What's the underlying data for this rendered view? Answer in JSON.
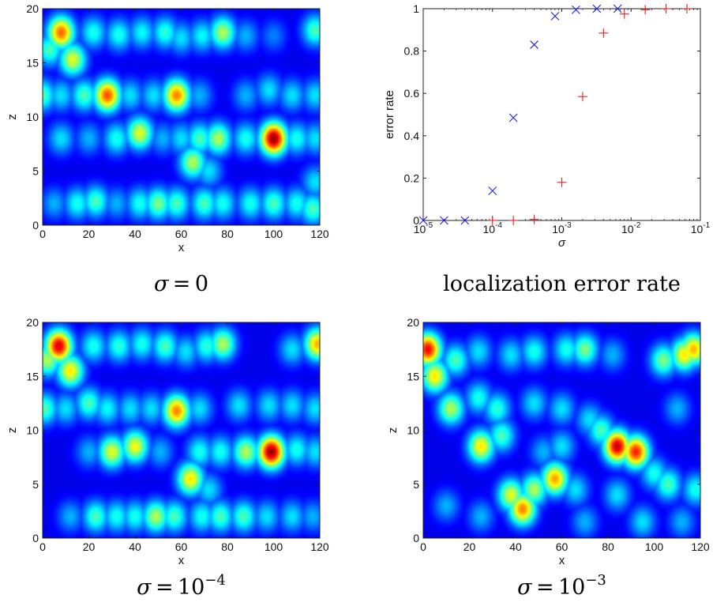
{
  "chart_data": [
    {
      "type": "heatmap",
      "panel": "top-left",
      "caption": {
        "symbol": "σ",
        "op": " = ",
        "base": "0",
        "exp": ""
      },
      "xlabel": "x",
      "ylabel": "z",
      "xlim": [
        0,
        120
      ],
      "ylim": [
        0,
        20
      ],
      "xticks": [
        "0",
        "20",
        "40",
        "60",
        "80",
        "100",
        "120"
      ],
      "yticks": [
        "0",
        "5",
        "10",
        "15",
        "20"
      ],
      "colormap": "jet",
      "blobs": [
        {
          "x": 8,
          "z": 17.8,
          "v": 0.78
        },
        {
          "x": 13,
          "z": 15.3,
          "v": 0.6
        },
        {
          "x": 3,
          "z": 16.2,
          "v": 0.45
        },
        {
          "x": 22,
          "z": 17.8,
          "v": 0.4
        },
        {
          "x": 33,
          "z": 17.6,
          "v": 0.4
        },
        {
          "x": 43,
          "z": 17.8,
          "v": 0.38
        },
        {
          "x": 53,
          "z": 17.8,
          "v": 0.42
        },
        {
          "x": 60,
          "z": 17.3,
          "v": 0.35
        },
        {
          "x": 69,
          "z": 17.5,
          "v": 0.38
        },
        {
          "x": 78,
          "z": 17.8,
          "v": 0.55
        },
        {
          "x": 88,
          "z": 17.5,
          "v": 0.3
        },
        {
          "x": 100,
          "z": 17.5,
          "v": 0.25
        },
        {
          "x": 118,
          "z": 18,
          "v": 0.45
        },
        {
          "x": 0,
          "z": 12,
          "v": 0.45
        },
        {
          "x": 8,
          "z": 12,
          "v": 0.35
        },
        {
          "x": 18,
          "z": 12,
          "v": 0.45
        },
        {
          "x": 28,
          "z": 12,
          "v": 0.8
        },
        {
          "x": 38,
          "z": 12,
          "v": 0.35
        },
        {
          "x": 48,
          "z": 12,
          "v": 0.35
        },
        {
          "x": 58,
          "z": 12,
          "v": 0.75
        },
        {
          "x": 68,
          "z": 12,
          "v": 0.3
        },
        {
          "x": 88,
          "z": 12,
          "v": 0.3
        },
        {
          "x": 98,
          "z": 12.5,
          "v": 0.35
        },
        {
          "x": 108,
          "z": 12,
          "v": 0.35
        },
        {
          "x": 118,
          "z": 12,
          "v": 0.35
        },
        {
          "x": 8,
          "z": 8,
          "v": 0.35
        },
        {
          "x": 20,
          "z": 8,
          "v": 0.3
        },
        {
          "x": 32,
          "z": 8,
          "v": 0.4
        },
        {
          "x": 42,
          "z": 8.5,
          "v": 0.6
        },
        {
          "x": 52,
          "z": 8,
          "v": 0.3
        },
        {
          "x": 60,
          "z": 8,
          "v": 0.35
        },
        {
          "x": 68,
          "z": 8,
          "v": 0.45
        },
        {
          "x": 76,
          "z": 8,
          "v": 0.55
        },
        {
          "x": 88,
          "z": 8,
          "v": 0.4
        },
        {
          "x": 100,
          "z": 8,
          "v": 0.98
        },
        {
          "x": 110,
          "z": 8,
          "v": 0.4
        },
        {
          "x": 118,
          "z": 8,
          "v": 0.35
        },
        {
          "x": 65,
          "z": 5.8,
          "v": 0.55
        },
        {
          "x": 72,
          "z": 5,
          "v": 0.35
        },
        {
          "x": 118,
          "z": 4,
          "v": 0.35
        },
        {
          "x": 5,
          "z": 2,
          "v": 0.3
        },
        {
          "x": 15,
          "z": 2,
          "v": 0.4
        },
        {
          "x": 23,
          "z": 2.2,
          "v": 0.45
        },
        {
          "x": 32,
          "z": 2,
          "v": 0.3
        },
        {
          "x": 42,
          "z": 2,
          "v": 0.4
        },
        {
          "x": 50,
          "z": 2,
          "v": 0.5
        },
        {
          "x": 58,
          "z": 2,
          "v": 0.45
        },
        {
          "x": 70,
          "z": 2,
          "v": 0.45
        },
        {
          "x": 78,
          "z": 2,
          "v": 0.4
        },
        {
          "x": 90,
          "z": 2,
          "v": 0.4
        },
        {
          "x": 100,
          "z": 2,
          "v": 0.45
        },
        {
          "x": 110,
          "z": 2,
          "v": 0.4
        },
        {
          "x": 117,
          "z": 1.5,
          "v": 0.45
        }
      ]
    },
    {
      "type": "scatter",
      "panel": "top-right",
      "caption": {
        "symbol": "",
        "op": "",
        "base": "localization error rate",
        "exp": ""
      },
      "xlabel": "σ",
      "ylabel": "error rate",
      "xscale": "log",
      "xlim": [
        1e-05,
        0.1
      ],
      "ylim": [
        0,
        1
      ],
      "xticks": [
        {
          "base": "10",
          "exp": "-5"
        },
        {
          "base": "10",
          "exp": "-4"
        },
        {
          "base": "10",
          "exp": "-3"
        },
        {
          "base": "10",
          "exp": "-2"
        },
        {
          "base": "10",
          "exp": "-1"
        }
      ],
      "yticks": [
        "0",
        "0.2",
        "0.4",
        "0.6",
        "0.8",
        "1"
      ],
      "series": [
        {
          "marker": "x",
          "color": "#1f1fe8",
          "x": [
            1e-05,
            2e-05,
            4e-05,
            0.0001,
            0.0002,
            0.0004,
            0.0008,
            0.0016,
            0.0032,
            0.0064
          ],
          "y": [
            0,
            0,
            0,
            0.14,
            0.485,
            0.83,
            0.965,
            0.995,
            1,
            1
          ]
        },
        {
          "marker": "+",
          "color": "#e82020",
          "x": [
            0.0001,
            0.0002,
            0.0004,
            0.001,
            0.002,
            0.004,
            0.008,
            0.016,
            0.032,
            0.064
          ],
          "y": [
            0,
            0,
            0.005,
            0.18,
            0.585,
            0.885,
            0.975,
            0.995,
            1,
            1
          ]
        }
      ]
    },
    {
      "type": "heatmap",
      "panel": "bottom-left",
      "caption": {
        "symbol": "σ",
        "op": " = ",
        "base": "10",
        "exp": "−4"
      },
      "xlabel": "x",
      "ylabel": "z",
      "xlim": [
        0,
        120
      ],
      "ylim": [
        0,
        20
      ],
      "xticks": [
        "0",
        "20",
        "40",
        "60",
        "80",
        "100",
        "120"
      ],
      "yticks": [
        "0",
        "5",
        "10",
        "15",
        "20"
      ],
      "colormap": "jet",
      "blobs": [
        {
          "x": 7,
          "z": 17.8,
          "v": 0.92
        },
        {
          "x": 12,
          "z": 15.5,
          "v": 0.65
        },
        {
          "x": 2,
          "z": 16.5,
          "v": 0.55
        },
        {
          "x": 22,
          "z": 17.8,
          "v": 0.4
        },
        {
          "x": 33,
          "z": 17.8,
          "v": 0.42
        },
        {
          "x": 43,
          "z": 18,
          "v": 0.4
        },
        {
          "x": 53,
          "z": 17.8,
          "v": 0.45
        },
        {
          "x": 62,
          "z": 17.3,
          "v": 0.35
        },
        {
          "x": 71,
          "z": 17.8,
          "v": 0.42
        },
        {
          "x": 78,
          "z": 18,
          "v": 0.55
        },
        {
          "x": 108,
          "z": 17.5,
          "v": 0.35
        },
        {
          "x": 119,
          "z": 18,
          "v": 0.7
        },
        {
          "x": 1,
          "z": 12,
          "v": 0.45
        },
        {
          "x": 10,
          "z": 12,
          "v": 0.35
        },
        {
          "x": 20,
          "z": 12.5,
          "v": 0.45
        },
        {
          "x": 28,
          "z": 12,
          "v": 0.38
        },
        {
          "x": 38,
          "z": 12,
          "v": 0.35
        },
        {
          "x": 47,
          "z": 12,
          "v": 0.35
        },
        {
          "x": 58,
          "z": 11.8,
          "v": 0.75
        },
        {
          "x": 68,
          "z": 12,
          "v": 0.35
        },
        {
          "x": 85,
          "z": 12.3,
          "v": 0.35
        },
        {
          "x": 98,
          "z": 12.3,
          "v": 0.35
        },
        {
          "x": 108,
          "z": 12.3,
          "v": 0.35
        },
        {
          "x": 118,
          "z": 12,
          "v": 0.35
        },
        {
          "x": 20,
          "z": 8,
          "v": 0.3
        },
        {
          "x": 30,
          "z": 8,
          "v": 0.6
        },
        {
          "x": 40,
          "z": 8.5,
          "v": 0.62
        },
        {
          "x": 51,
          "z": 8,
          "v": 0.3
        },
        {
          "x": 68,
          "z": 8,
          "v": 0.4
        },
        {
          "x": 77,
          "z": 8,
          "v": 0.4
        },
        {
          "x": 88,
          "z": 8,
          "v": 0.55
        },
        {
          "x": 99,
          "z": 8,
          "v": 0.98
        },
        {
          "x": 110,
          "z": 8.2,
          "v": 0.4
        },
        {
          "x": 118,
          "z": 8,
          "v": 0.35
        },
        {
          "x": 64,
          "z": 5.5,
          "v": 0.65
        },
        {
          "x": 72,
          "z": 4.5,
          "v": 0.35
        },
        {
          "x": 12,
          "z": 2,
          "v": 0.3
        },
        {
          "x": 23,
          "z": 2,
          "v": 0.45
        },
        {
          "x": 32,
          "z": 2,
          "v": 0.4
        },
        {
          "x": 40,
          "z": 2,
          "v": 0.4
        },
        {
          "x": 49,
          "z": 2,
          "v": 0.55
        },
        {
          "x": 57,
          "z": 2,
          "v": 0.45
        },
        {
          "x": 69,
          "z": 2,
          "v": 0.4
        },
        {
          "x": 77,
          "z": 2,
          "v": 0.45
        },
        {
          "x": 87,
          "z": 2,
          "v": 0.45
        },
        {
          "x": 97,
          "z": 2,
          "v": 0.35
        },
        {
          "x": 108,
          "z": 2,
          "v": 0.35
        },
        {
          "x": 117,
          "z": 2,
          "v": 0.3
        }
      ]
    },
    {
      "type": "heatmap",
      "panel": "bottom-right",
      "caption": {
        "symbol": "σ",
        "op": " = ",
        "base": "10",
        "exp": "−3"
      },
      "xlabel": "x",
      "ylabel": "z",
      "xlim": [
        0,
        120
      ],
      "ylim": [
        0,
        20
      ],
      "xticks": [
        "0",
        "20",
        "40",
        "60",
        "80",
        "100",
        "120"
      ],
      "yticks": [
        "0",
        "5",
        "10",
        "15",
        "20"
      ],
      "colormap": "jet",
      "blobs": [
        {
          "x": 2,
          "z": 17.5,
          "v": 0.88
        },
        {
          "x": 5,
          "z": 15,
          "v": 0.65
        },
        {
          "x": 14,
          "z": 16.5,
          "v": 0.45
        },
        {
          "x": 24,
          "z": 17.3,
          "v": 0.35
        },
        {
          "x": 38,
          "z": 17,
          "v": 0.35
        },
        {
          "x": 48,
          "z": 17.3,
          "v": 0.4
        },
        {
          "x": 62,
          "z": 17.5,
          "v": 0.4
        },
        {
          "x": 70,
          "z": 17.5,
          "v": 0.5
        },
        {
          "x": 82,
          "z": 17,
          "v": 0.3
        },
        {
          "x": 104,
          "z": 16.5,
          "v": 0.5
        },
        {
          "x": 113,
          "z": 17,
          "v": 0.65
        },
        {
          "x": 117,
          "z": 17.5,
          "v": 0.7
        },
        {
          "x": 12,
          "z": 12,
          "v": 0.55
        },
        {
          "x": 24,
          "z": 13,
          "v": 0.4
        },
        {
          "x": 32,
          "z": 12,
          "v": 0.42
        },
        {
          "x": 48,
          "z": 12.5,
          "v": 0.35
        },
        {
          "x": 60,
          "z": 12,
          "v": 0.35
        },
        {
          "x": 72,
          "z": 11,
          "v": 0.35
        },
        {
          "x": 110,
          "z": 12,
          "v": 0.3
        },
        {
          "x": 25,
          "z": 8.5,
          "v": 0.65
        },
        {
          "x": 34,
          "z": 9.5,
          "v": 0.45
        },
        {
          "x": 52,
          "z": 8,
          "v": 0.3
        },
        {
          "x": 60,
          "z": 8.5,
          "v": 0.35
        },
        {
          "x": 77,
          "z": 10,
          "v": 0.45
        },
        {
          "x": 84,
          "z": 8.5,
          "v": 0.93
        },
        {
          "x": 92,
          "z": 8,
          "v": 0.85
        },
        {
          "x": 100,
          "z": 6,
          "v": 0.4
        },
        {
          "x": 38,
          "z": 4,
          "v": 0.6
        },
        {
          "x": 43,
          "z": 2.7,
          "v": 0.75
        },
        {
          "x": 48,
          "z": 4.5,
          "v": 0.55
        },
        {
          "x": 57,
          "z": 5.5,
          "v": 0.72
        },
        {
          "x": 66,
          "z": 4.5,
          "v": 0.35
        },
        {
          "x": 84,
          "z": 4,
          "v": 0.35
        },
        {
          "x": 106,
          "z": 5,
          "v": 0.45
        },
        {
          "x": 118,
          "z": 4.5,
          "v": 0.4
        },
        {
          "x": 10,
          "z": 3,
          "v": 0.3
        },
        {
          "x": 25,
          "z": 2,
          "v": 0.3
        },
        {
          "x": 70,
          "z": 1.5,
          "v": 0.3
        },
        {
          "x": 95,
          "z": 1.5,
          "v": 0.35
        },
        {
          "x": 112,
          "z": 1.5,
          "v": 0.3
        }
      ]
    }
  ]
}
